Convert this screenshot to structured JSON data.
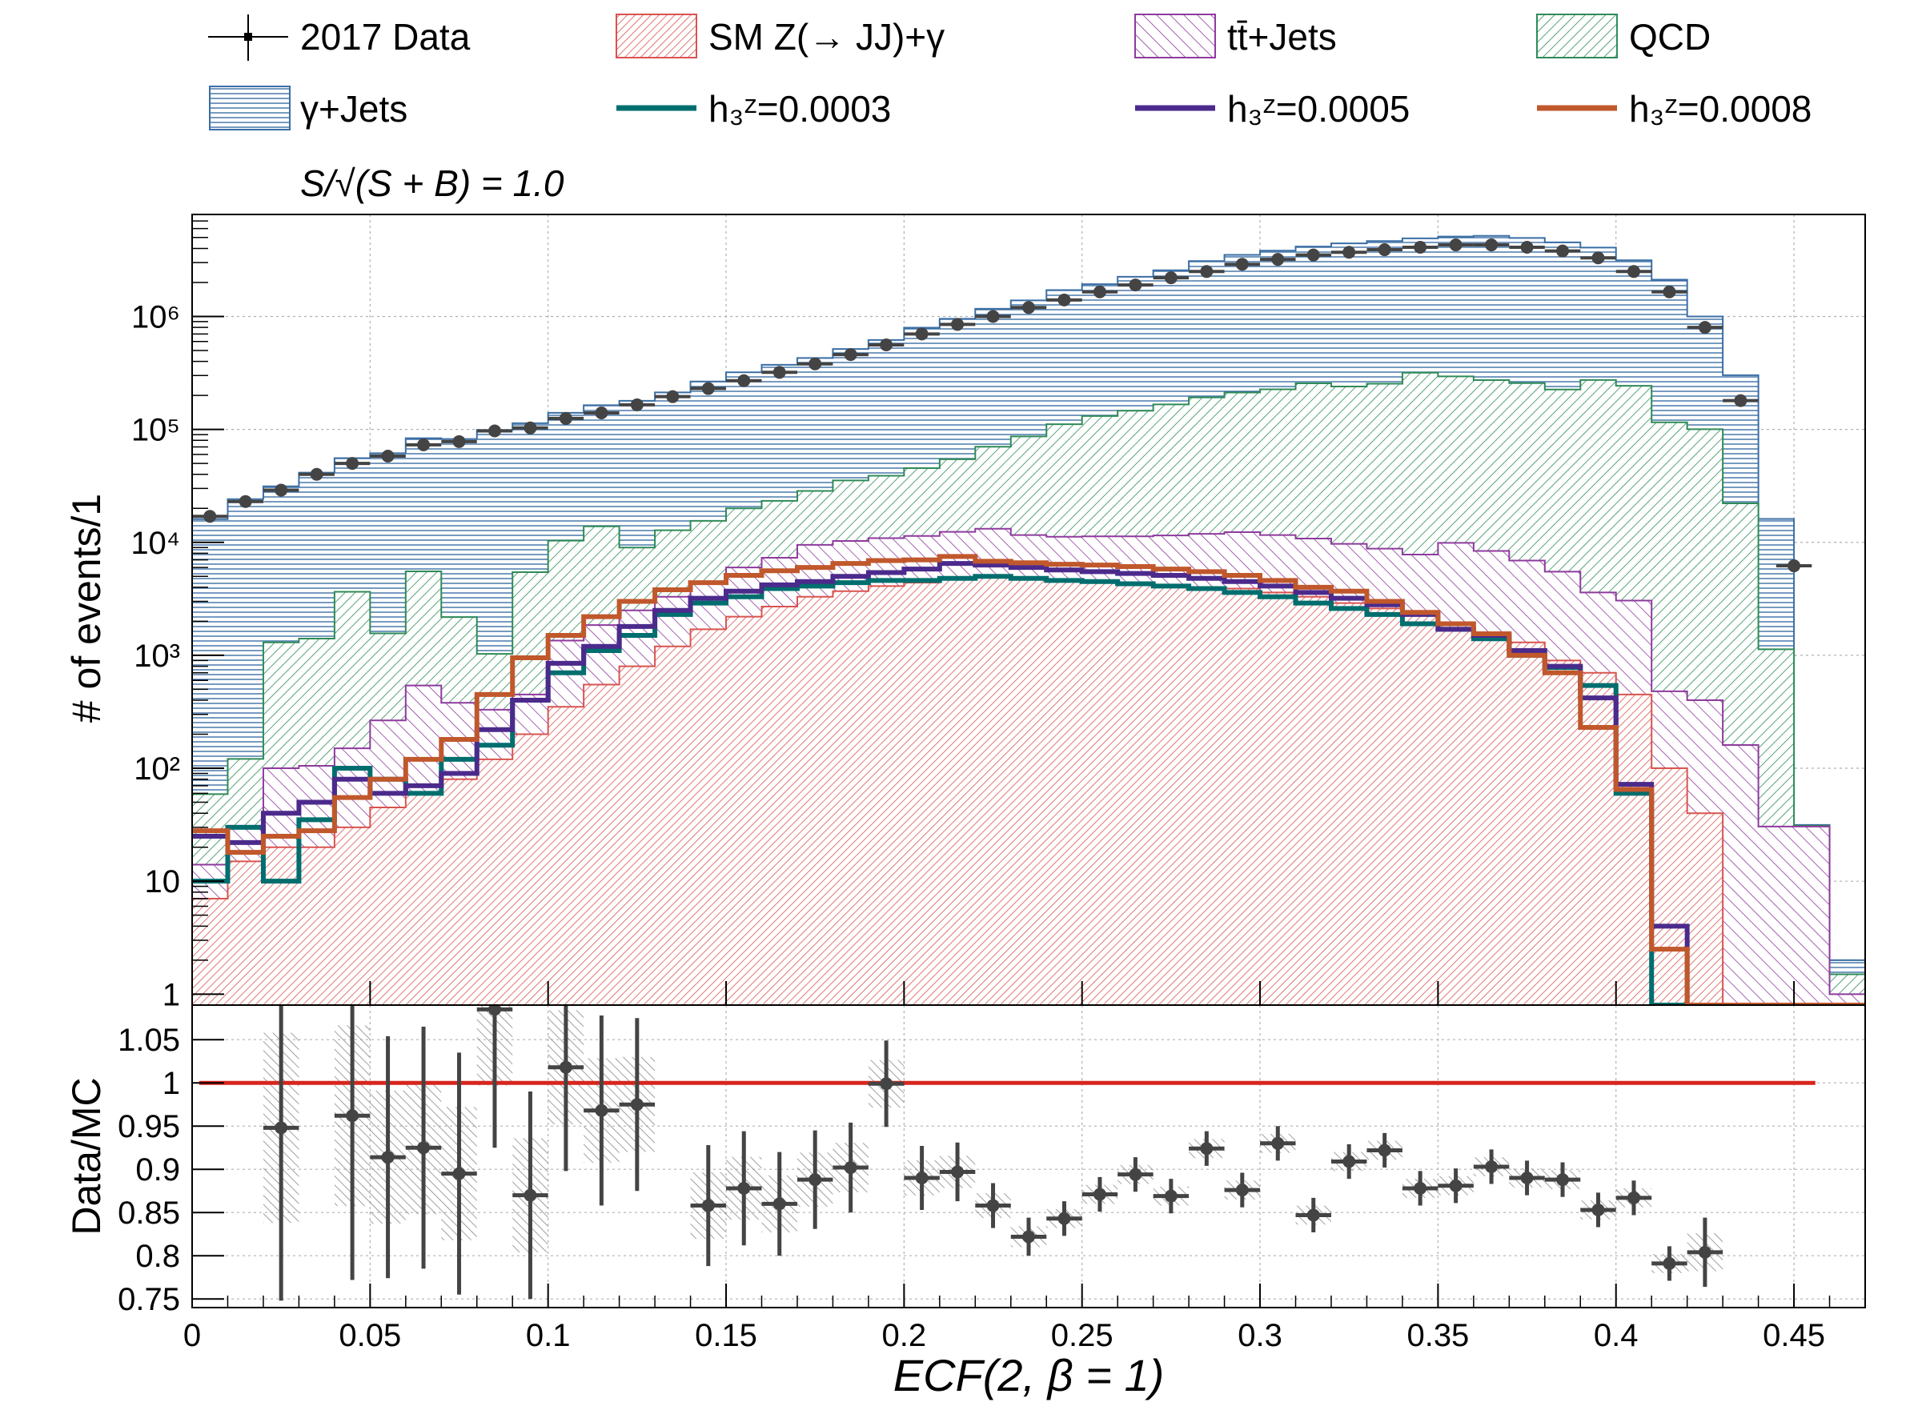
{
  "chart_data": [
    {
      "type": "histogram",
      "panel": "main",
      "ylabel": "# of events/1",
      "xlim": [
        0,
        0.47
      ],
      "ylim": [
        0.8,
        8000000
      ],
      "log_y": true,
      "grid": true,
      "annotation": "S/√(S + B) = 1.0",
      "ytick_labels": [
        "1",
        "10",
        "10²",
        "10³",
        "10⁴",
        "10⁵",
        "10⁶"
      ],
      "ytick_values": [
        1,
        10,
        100,
        1000,
        10000,
        100000,
        1000000
      ],
      "legend_position": "top",
      "bin_width": 0.01,
      "bin_low_edges": [
        0,
        0.01,
        0.02,
        0.03,
        0.04,
        0.05,
        0.06,
        0.07,
        0.08,
        0.09,
        0.1,
        0.11,
        0.12,
        0.13,
        0.14,
        0.15,
        0.16,
        0.17,
        0.18,
        0.19,
        0.2,
        0.21,
        0.22,
        0.23,
        0.24,
        0.25,
        0.26,
        0.27,
        0.28,
        0.29,
        0.3,
        0.31,
        0.32,
        0.33,
        0.34,
        0.35,
        0.36,
        0.37,
        0.38,
        0.39,
        0.4,
        0.41,
        0.42,
        0.43,
        0.44,
        0.45,
        0.46
      ],
      "stacked_series": [
        {
          "name": "SM Z(→ JJ)+γ",
          "color": "#d9534f",
          "hatch": "red",
          "values": [
            7,
            15,
            20,
            20,
            30,
            45,
            60,
            80,
            120,
            200,
            350,
            550,
            800,
            1200,
            1700,
            2200,
            2700,
            3300,
            3700,
            4100,
            4400,
            4700,
            4900,
            4800,
            4600,
            4400,
            4200,
            4100,
            4000,
            3900,
            3600,
            3300,
            2900,
            2600,
            2300,
            1900,
            1600,
            1300,
            900,
            700,
            450,
            100,
            40,
            0.5,
            0.5,
            0.5,
            0.5
          ]
        },
        {
          "name": "tt̄+Jets",
          "color": "#8e3a9d",
          "hatch": "purple",
          "values": [
            7,
            16,
            80,
            85,
            120,
            220,
            480,
            300,
            210,
            250,
            1000,
            1300,
            1700,
            2100,
            2800,
            3800,
            4600,
            6200,
            6600,
            6800,
            7000,
            7700,
            8300,
            6800,
            6600,
            6900,
            7100,
            7400,
            7900,
            8400,
            8000,
            7500,
            6800,
            6200,
            5500,
            8000,
            6800,
            5600,
            4600,
            2900,
            2600,
            380,
            360,
            160,
            30,
            30,
            0.5
          ]
        },
        {
          "name": "QCD",
          "color": "#2e8b57",
          "hatch": "green",
          "values": [
            45,
            90,
            1200,
            1300,
            3500,
            1300,
            5000,
            1800,
            700,
            5000,
            9000,
            12000,
            6500,
            9500,
            11000,
            14000,
            16000,
            19000,
            25000,
            28000,
            34000,
            42000,
            57000,
            75000,
            100000,
            120000,
            135000,
            155000,
            180000,
            200000,
            215000,
            245000,
            230000,
            245000,
            310000,
            285000,
            265000,
            250000,
            220000,
            270000,
            240000,
            115000,
            100000,
            22000,
            1100,
            0.5,
            0.5
          ]
        },
        {
          "name": "γ+Jets",
          "color": "#3a6ea5",
          "hatch": "blue",
          "values": [
            16000,
            24000,
            30000,
            40000,
            52000,
            60000,
            78000,
            80000,
            98000,
            108000,
            130000,
            150000,
            170000,
            200000,
            250000,
            300000,
            350000,
            400000,
            480000,
            580000,
            750000,
            900000,
            1100000,
            1300000,
            1600000,
            1800000,
            2100000,
            2400000,
            2900000,
            3300000,
            3600000,
            3900000,
            4200000,
            4400000,
            4600000,
            4800000,
            4900000,
            4700000,
            4300000,
            3800000,
            2900000,
            2000000,
            900000,
            280000,
            15000,
            0.5,
            0.5
          ]
        }
      ],
      "line_series": [
        {
          "name": "h₃ᶻ=0.0003",
          "color": "#006e6e",
          "values": [
            10,
            30,
            10,
            35,
            100,
            80,
            60,
            120,
            160,
            400,
            700,
            1100,
            1500,
            2300,
            2900,
            3300,
            3900,
            4100,
            4400,
            4600,
            4600,
            4800,
            5000,
            4800,
            4600,
            4500,
            4300,
            4100,
            3900,
            3600,
            3300,
            2900,
            2600,
            2300,
            1900,
            1700,
            1400,
            1000,
            780,
            540,
            60,
            0.8,
            0.8,
            0.8,
            0.8,
            0.8,
            0.8
          ]
        },
        {
          "name": "h₃ᶻ=0.0005",
          "color": "#4b2a8c",
          "values": [
            25,
            22,
            40,
            50,
            80,
            60,
            70,
            90,
            220,
            400,
            850,
            1200,
            1800,
            2500,
            3200,
            3700,
            4200,
            4500,
            5000,
            5400,
            5800,
            6500,
            6300,
            6000,
            5700,
            5500,
            5300,
            5100,
            4800,
            4500,
            4100,
            3600,
            3200,
            2800,
            2300,
            1700,
            1500,
            1100,
            800,
            420,
            72,
            4,
            0.8,
            0.8,
            0.8,
            0.8,
            0.8
          ]
        },
        {
          "name": "h₃ᶻ=0.0008",
          "color": "#c0582c",
          "values": [
            28,
            18,
            25,
            28,
            55,
            80,
            120,
            180,
            450,
            950,
            1500,
            2200,
            3000,
            3800,
            4400,
            5100,
            5600,
            6000,
            6500,
            6900,
            7000,
            7500,
            6800,
            6600,
            6400,
            6300,
            6100,
            5800,
            5500,
            5100,
            4600,
            4000,
            3700,
            3000,
            2400,
            1900,
            1550,
            1000,
            700,
            230,
            65,
            2.5,
            0.8,
            0.8,
            0.8,
            0.8,
            0.8
          ]
        }
      ],
      "data_series": {
        "name": "2017 Data",
        "color": "#444444",
        "x": [
          0.005,
          0.015,
          0.025,
          0.035,
          0.045,
          0.055,
          0.065,
          0.075,
          0.085,
          0.095,
          0.105,
          0.115,
          0.125,
          0.135,
          0.145,
          0.155,
          0.165,
          0.175,
          0.185,
          0.195,
          0.205,
          0.215,
          0.225,
          0.235,
          0.245,
          0.255,
          0.265,
          0.275,
          0.285,
          0.295,
          0.305,
          0.315,
          0.325,
          0.335,
          0.345,
          0.355,
          0.365,
          0.375,
          0.385,
          0.395,
          0.405,
          0.415,
          0.425,
          0.435,
          0.45
        ],
        "y": [
          17000,
          23000,
          29000,
          40000,
          50000,
          58000,
          73000,
          78000,
          97000,
          103000,
          125000,
          140000,
          165000,
          195000,
          230000,
          270000,
          320000,
          380000,
          460000,
          560000,
          700000,
          850000,
          1000000,
          1200000,
          1400000,
          1650000,
          1900000,
          2200000,
          2500000,
          2900000,
          3200000,
          3500000,
          3700000,
          3900000,
          4100000,
          4300000,
          4300000,
          4100000,
          3800000,
          3300000,
          2500000,
          1650000,
          800000,
          180000,
          6200
        ]
      }
    },
    {
      "type": "scatter",
      "panel": "ratio",
      "ylabel": "Data/MC",
      "xlabel": "ECF(2, β = 1)",
      "xlim": [
        0,
        0.47
      ],
      "ylim": [
        0.74,
        1.09
      ],
      "grid": true,
      "reference_line": {
        "y": 1,
        "x_range": [
          0.002,
          0.456
        ],
        "color": "#d6261e"
      },
      "xtick_values": [
        0,
        0.05,
        0.1,
        0.15,
        0.2,
        0.25,
        0.3,
        0.35,
        0.4,
        0.45
      ],
      "xtick_labels": [
        "0",
        "0.05",
        "0.1",
        "0.15",
        "0.2",
        "0.25",
        "0.3",
        "0.35",
        "0.4",
        "0.45"
      ],
      "ytick_values": [
        0.75,
        0.8,
        0.85,
        0.9,
        0.95,
        1,
        1.05
      ],
      "ytick_labels": [
        "0.75",
        "0.8",
        "0.85",
        "0.9",
        "0.95",
        "1",
        "1.05"
      ],
      "points": {
        "x": [
          0.025,
          0.045,
          0.055,
          0.065,
          0.075,
          0.085,
          0.095,
          0.105,
          0.115,
          0.125,
          0.145,
          0.155,
          0.165,
          0.175,
          0.185,
          0.195,
          0.205,
          0.215,
          0.225,
          0.235,
          0.245,
          0.255,
          0.265,
          0.275,
          0.285,
          0.295,
          0.305,
          0.315,
          0.325,
          0.335,
          0.345,
          0.355,
          0.365,
          0.375,
          0.385,
          0.395,
          0.405,
          0.415,
          0.425
        ],
        "y": [
          0.948,
          0.962,
          0.914,
          0.925,
          0.895,
          1.085,
          0.87,
          1.018,
          0.968,
          0.975,
          0.858,
          0.878,
          0.86,
          0.888,
          0.902,
          0.999,
          0.89,
          0.897,
          0.858,
          0.822,
          0.843,
          0.871,
          0.894,
          0.869,
          0.924,
          0.876,
          0.93,
          0.847,
          0.909,
          0.922,
          0.878,
          0.881,
          0.903,
          0.89,
          0.888,
          0.853,
          0.867,
          0.791,
          0.804
        ],
        "err": [
          0.2,
          0.19,
          0.14,
          0.14,
          0.14,
          0.16,
          0.12,
          0.12,
          0.11,
          0.1,
          0.07,
          0.066,
          0.06,
          0.057,
          0.052,
          0.05,
          0.037,
          0.034,
          0.026,
          0.022,
          0.02,
          0.02,
          0.02,
          0.02,
          0.02,
          0.02,
          0.02,
          0.02,
          0.02,
          0.02,
          0.02,
          0.02,
          0.02,
          0.02,
          0.02,
          0.02,
          0.02,
          0.02,
          0.04
        ]
      }
    }
  ],
  "legend": [
    {
      "label": "2017 Data",
      "kind": "marker",
      "color": "#000000"
    },
    {
      "label": "SM Z(→ JJ)+γ",
      "kind": "hatch",
      "color": "#d9534f"
    },
    {
      "label": "tt̄+Jets",
      "kind": "hatch",
      "color": "#8e3a9d"
    },
    {
      "label": "QCD",
      "kind": "hatch",
      "color": "#2e8b57"
    },
    {
      "label": "γ+Jets",
      "kind": "hatch",
      "color": "#3a6ea5"
    },
    {
      "label": "h₃ᶻ=0.0003",
      "kind": "line",
      "color": "#006e6e"
    },
    {
      "label": "h₃ᶻ=0.0005",
      "kind": "line",
      "color": "#4b2a8c"
    },
    {
      "label": "h₃ᶻ=0.0008",
      "kind": "line",
      "color": "#c0582c"
    }
  ]
}
